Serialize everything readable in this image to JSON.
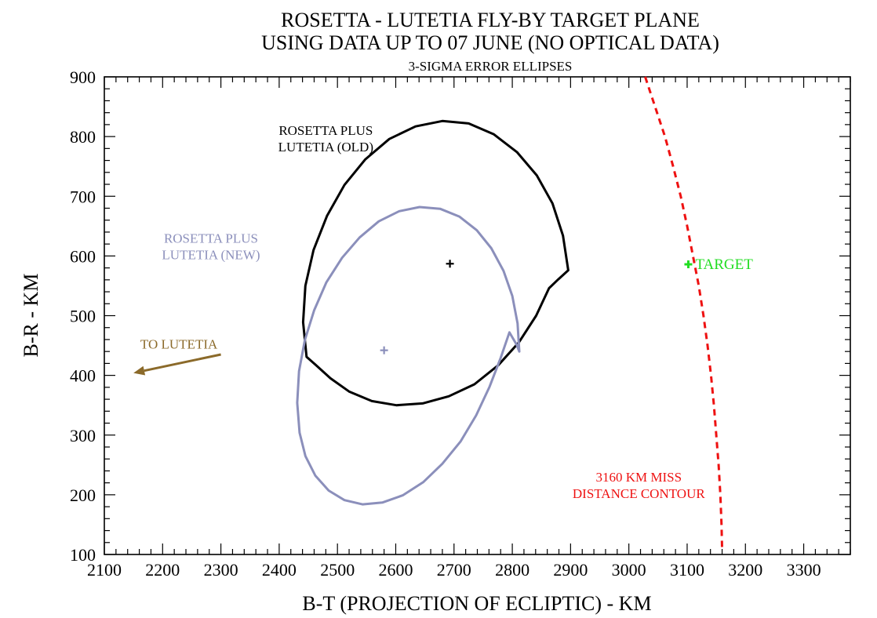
{
  "chart_data": {
    "type": "scatter",
    "title": "ROSETTA - LUTETIA FLY-BY TARGET PLANE",
    "subtitle": "USING DATA UP TO 07 JUNE (NO OPTICAL DATA)",
    "subtitle2": "3-SIGMA ERROR ELLIPSES",
    "xlabel": "B-T (PROJECTION OF ECLIPTIC) - KM",
    "ylabel": "B-R - KM",
    "xlim": [
      2100,
      3380
    ],
    "ylim": [
      100,
      900
    ],
    "xticks": [
      2100,
      2200,
      2300,
      2400,
      2500,
      2600,
      2700,
      2800,
      2900,
      3000,
      3100,
      3200,
      3300
    ],
    "yticks": [
      100,
      200,
      300,
      400,
      500,
      600,
      700,
      800,
      900
    ],
    "grid": false,
    "colors": {
      "old": "#000000",
      "new": "#8b8fbb",
      "arrow": "#8b6a2a",
      "target": "#22dd22",
      "contour": "#ee1111"
    },
    "ellipses": [
      {
        "key": "old",
        "label_lines": [
          "ROSETTA PLUS",
          "LUTETIA (OLD)"
        ],
        "center_marker": [
          2693,
          587
        ],
        "outline": [
          [
            2896,
            576
          ],
          [
            2887,
            634
          ],
          [
            2869,
            688
          ],
          [
            2842,
            735
          ],
          [
            2808,
            774
          ],
          [
            2768,
            804
          ],
          [
            2725,
            822
          ],
          [
            2680,
            826
          ],
          [
            2634,
            817
          ],
          [
            2589,
            796
          ],
          [
            2548,
            762
          ],
          [
            2512,
            719
          ],
          [
            2482,
            667
          ],
          [
            2459,
            610
          ],
          [
            2445,
            550
          ],
          [
            2441,
            489
          ],
          [
            2447,
            431
          ],
          [
            2462,
            418
          ],
          [
            2488,
            395
          ],
          [
            2520,
            373
          ],
          [
            2559,
            357
          ],
          [
            2601,
            350
          ],
          [
            2646,
            353
          ],
          [
            2691,
            365
          ],
          [
            2735,
            385
          ],
          [
            2776,
            417
          ],
          [
            2811,
            455
          ],
          [
            2841,
            500
          ],
          [
            2863,
            546
          ],
          [
            2879,
            561
          ],
          [
            2896,
            576
          ]
        ]
      },
      {
        "key": "new",
        "label_lines": [
          "ROSETTA PLUS",
          "LUTETIA (NEW)"
        ],
        "center_marker": [
          2580,
          442
        ],
        "outline": [
          [
            2812,
            440
          ],
          [
            2809,
            487
          ],
          [
            2800,
            533
          ],
          [
            2785,
            575
          ],
          [
            2764,
            613
          ],
          [
            2739,
            643
          ],
          [
            2709,
            666
          ],
          [
            2676,
            679
          ],
          [
            2641,
            682
          ],
          [
            2606,
            675
          ],
          [
            2571,
            658
          ],
          [
            2538,
            631
          ],
          [
            2508,
            597
          ],
          [
            2481,
            556
          ],
          [
            2460,
            509
          ],
          [
            2444,
            459
          ],
          [
            2434,
            407
          ],
          [
            2431,
            354
          ],
          [
            2435,
            304
          ],
          [
            2445,
            265
          ],
          [
            2462,
            232
          ],
          [
            2485,
            207
          ],
          [
            2512,
            191
          ],
          [
            2543,
            184
          ],
          [
            2577,
            187
          ],
          [
            2612,
            199
          ],
          [
            2647,
            221
          ],
          [
            2680,
            252
          ],
          [
            2711,
            289
          ],
          [
            2738,
            333
          ],
          [
            2761,
            381
          ],
          [
            2780,
            429
          ],
          [
            2795,
            472
          ],
          [
            2807,
            452
          ],
          [
            2812,
            440
          ]
        ]
      }
    ],
    "target": {
      "label": "TARGET",
      "point": [
        3102,
        586
      ]
    },
    "contour": {
      "label_lines": [
        "3160 KM MISS",
        "DISTANCE CONTOUR"
      ],
      "points": [
        [
          3028,
          900
        ],
        [
          3045,
          850
        ],
        [
          3062,
          800
        ],
        [
          3076,
          750
        ],
        [
          3089,
          700
        ],
        [
          3100,
          650
        ],
        [
          3110,
          600
        ],
        [
          3120,
          550
        ],
        [
          3128,
          500
        ],
        [
          3135,
          450
        ],
        [
          3141,
          400
        ],
        [
          3146,
          350
        ],
        [
          3150,
          300
        ],
        [
          3154,
          250
        ],
        [
          3157,
          200
        ],
        [
          3159,
          150
        ],
        [
          3160,
          110
        ]
      ]
    },
    "arrow": {
      "label": "TO LUTETIA",
      "from": [
        2300,
        435
      ],
      "to": [
        2150,
        404
      ]
    }
  }
}
